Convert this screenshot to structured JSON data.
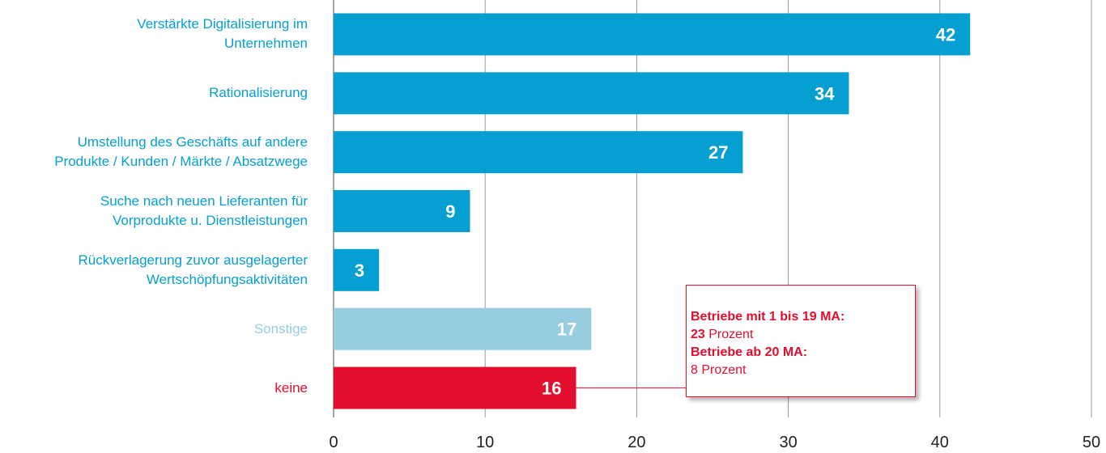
{
  "chart_data": {
    "type": "bar",
    "orientation": "horizontal",
    "categories": [
      "Verstärkte Digitalisierung im\nUnternehmen",
      "Rationalisierung",
      "Umstellung des Geschäfts auf andere\nProdukte / Kunden / Märkte / Absatzwege",
      "Suche nach neuen Lieferanten für\nVorprodukte u. Dienstleistungen",
      "Rückverlagerung zuvor ausgelagerter\nWertschöpfungsaktivitäten",
      "Sonstige",
      "keine"
    ],
    "values": [
      42,
      34,
      27,
      9,
      3,
      17,
      16
    ],
    "colors": [
      "#069fd1",
      "#069fd1",
      "#069fd1",
      "#069fd1",
      "#069fd1",
      "#96cde0",
      "#e20e2d"
    ],
    "xlim": [
      0,
      50
    ],
    "xticks": [
      0,
      10,
      20,
      30,
      40,
      50
    ],
    "grid": true,
    "annotation": {
      "category_index": 6,
      "lines": [
        [
          {
            "text": "Betriebe mit 1 bis 19 MA:",
            "bold": true
          }
        ],
        [
          {
            "text": "23",
            "bold": true
          },
          {
            "text": " Prozent",
            "bold": false
          }
        ],
        [
          {
            "text": "Betriebe ab 20 MA:",
            "bold": true
          }
        ],
        [
          {
            "text": "8 Prozent",
            "bold": false
          }
        ]
      ]
    }
  }
}
